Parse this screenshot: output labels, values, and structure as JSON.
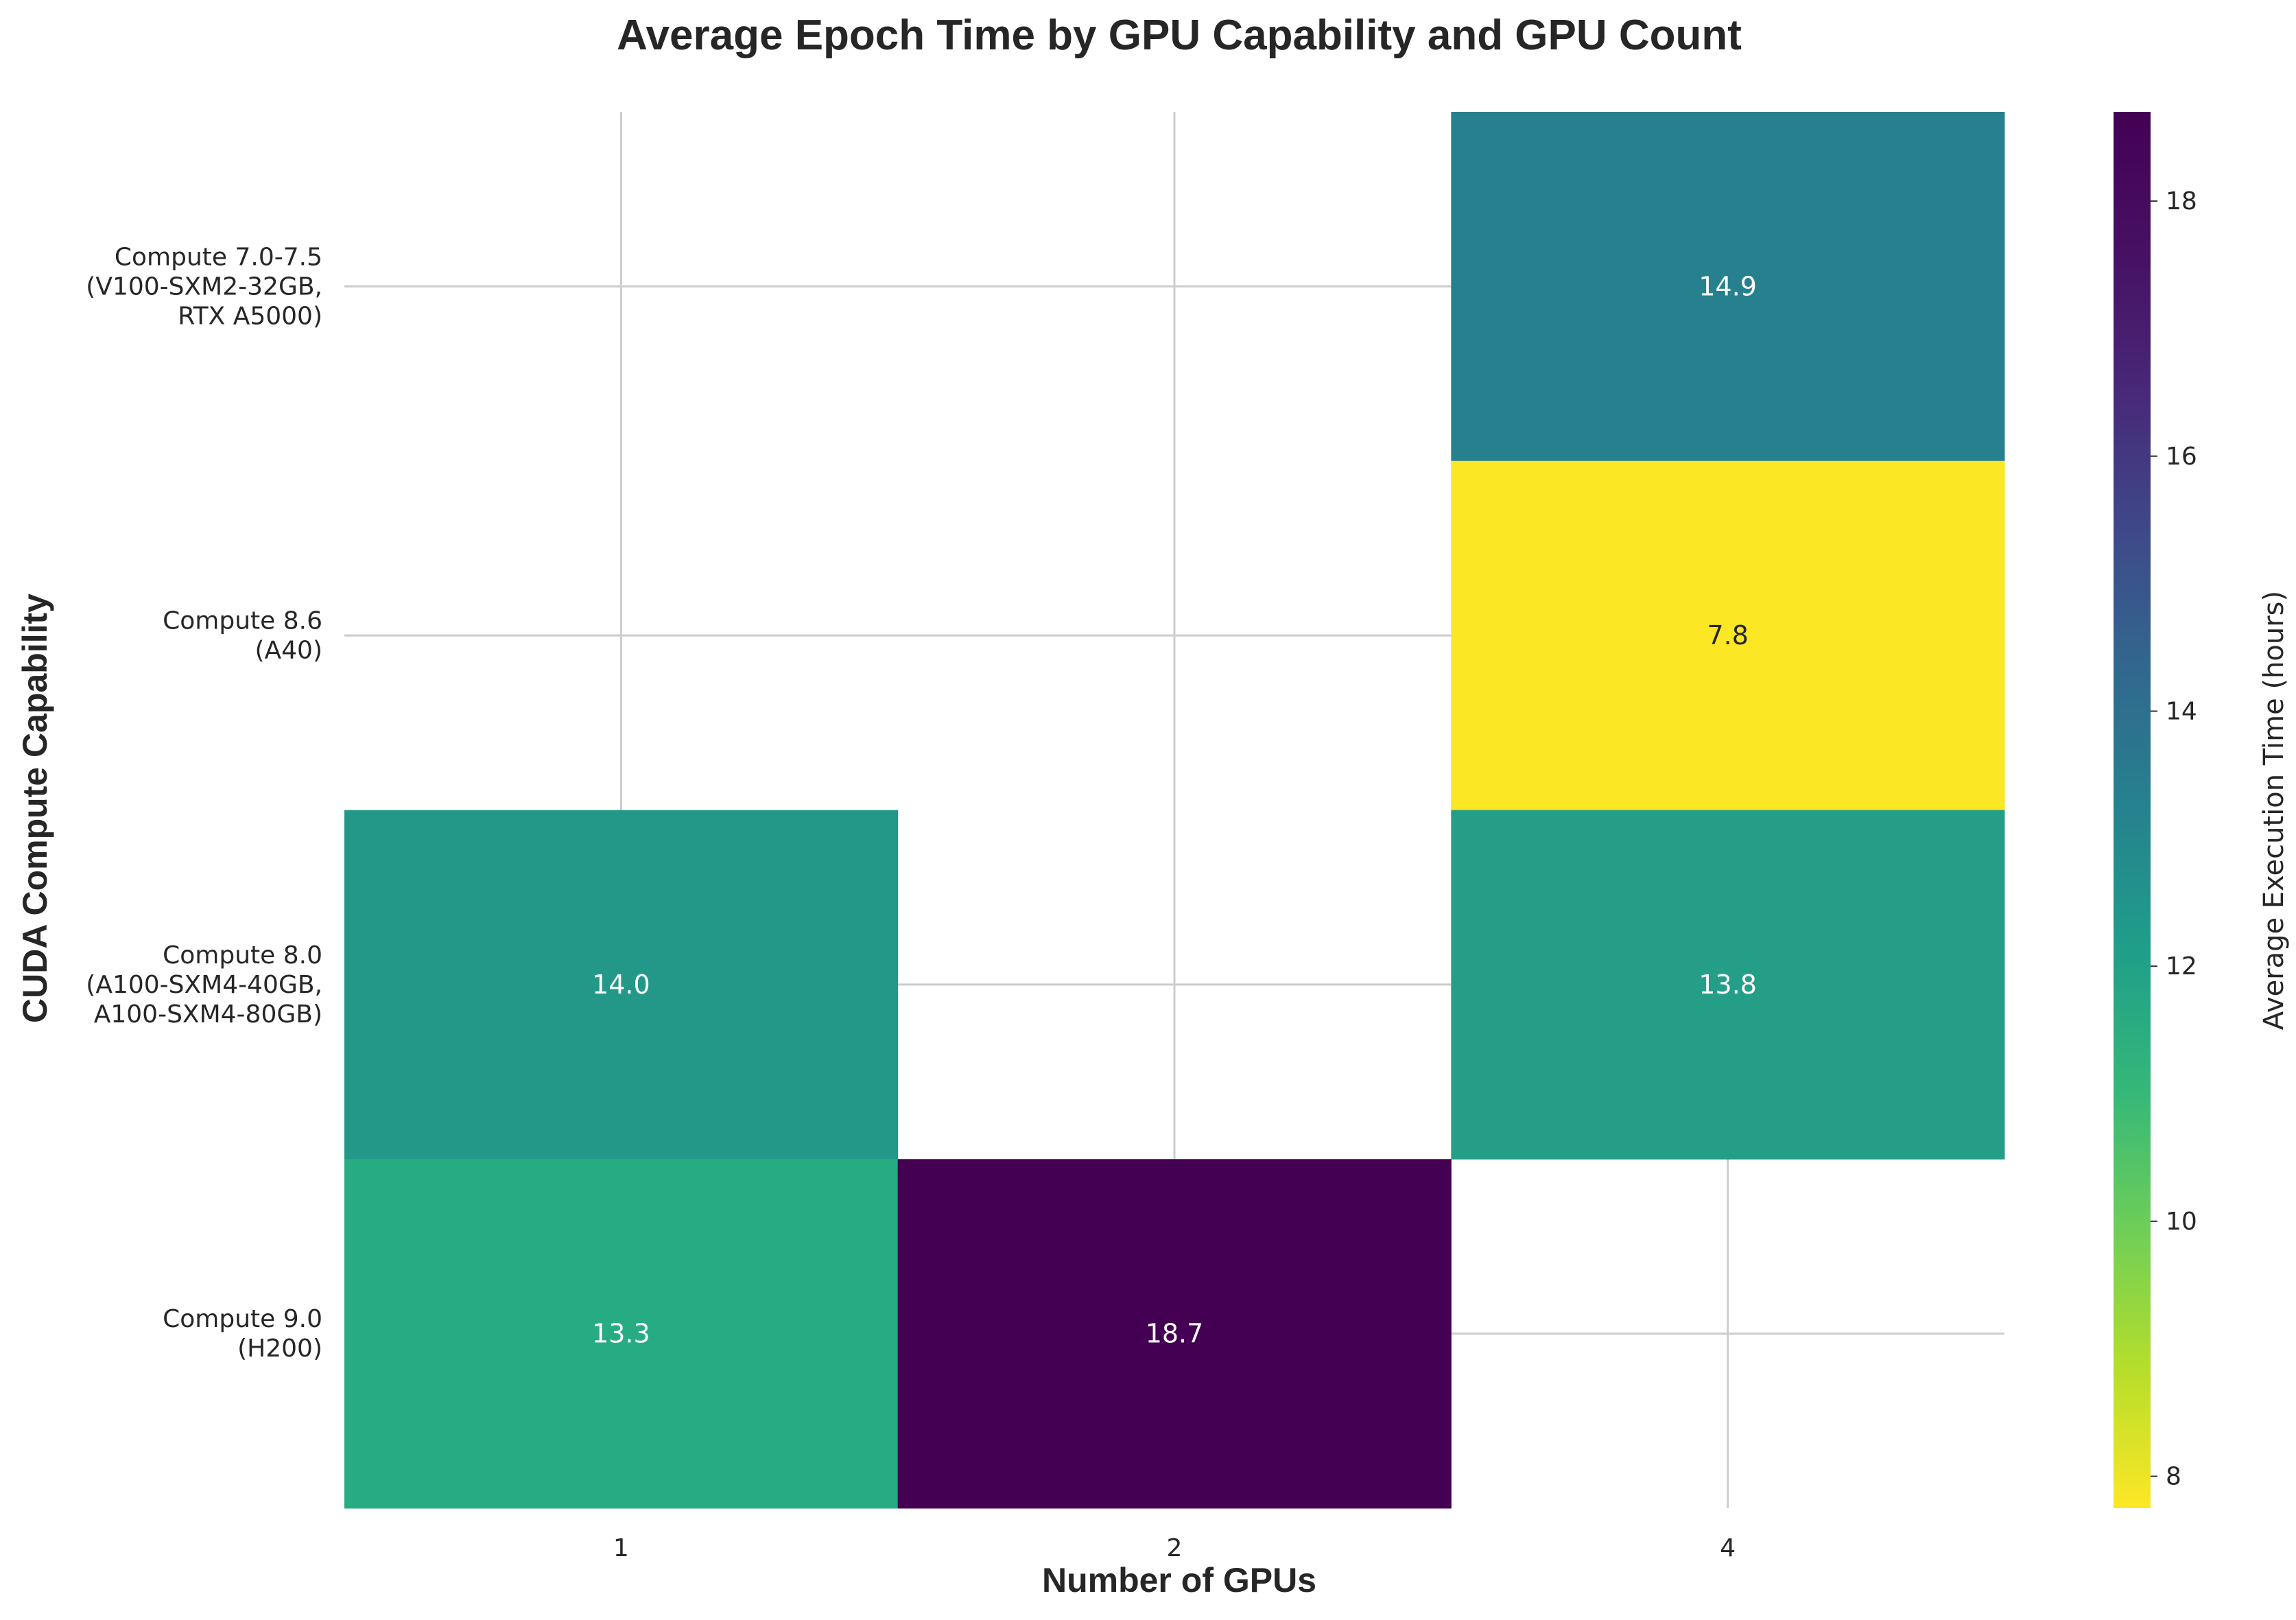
{
  "chart_data": {
    "type": "heatmap",
    "title": "Average Epoch Time by GPU Capability and GPU Count",
    "xlabel": "Number of GPUs",
    "ylabel": "CUDA Compute Capability",
    "x_categories": [
      "1",
      "2",
      "4"
    ],
    "y_categories": [
      [
        "Compute 7.0-7.5",
        "(V100-SXM2-32GB,",
        "RTX A5000)"
      ],
      [
        "Compute 8.6",
        "(A40)"
      ],
      [
        "Compute 8.0",
        "(A100-SXM4-40GB,",
        "A100-SXM4-80GB)"
      ],
      [
        "Compute 9.0",
        "(H200)"
      ]
    ],
    "values": [
      [
        null,
        null,
        14.9
      ],
      [
        null,
        null,
        7.8
      ],
      [
        14.0,
        null,
        13.8
      ],
      [
        13.3,
        18.7,
        null
      ]
    ],
    "value_labels": [
      [
        "",
        "",
        "14.9"
      ],
      [
        "",
        "",
        "7.8"
      ],
      [
        "14.0",
        "",
        "13.8"
      ],
      [
        "13.3",
        "18.7",
        ""
      ]
    ],
    "colormap": "viridis_r",
    "vmin": 7.75,
    "vmax": 18.7,
    "grid": true,
    "colorbar": {
      "label": "Average Execution Time (hours)",
      "ticks": [
        8,
        10,
        12,
        14,
        16,
        18
      ],
      "tick_labels": [
        "8",
        "10",
        "12",
        "14",
        "16",
        "18"
      ]
    }
  }
}
